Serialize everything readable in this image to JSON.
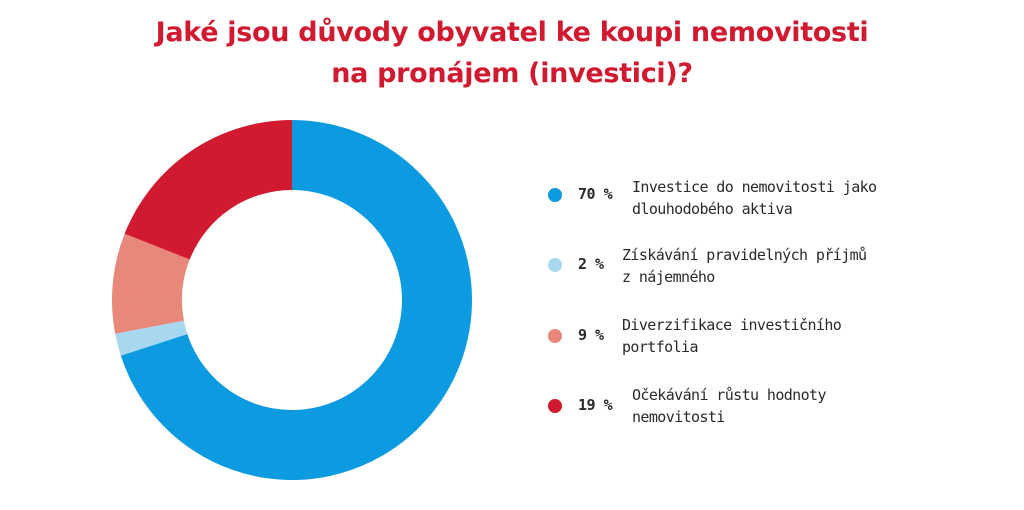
{
  "title_lines": [
    "Jaké jsou důvody obyvatel ke koupi nemovitosti",
    "na pronájem (investici)?"
  ],
  "chart_data": {
    "type": "pie",
    "donut": true,
    "title": "Jaké jsou důvody obyvatel ke koupi nemovitosti na pronájem (investici)?",
    "categories": [
      "Investice do nemovitosti jako dlouhodobého aktiva",
      "Získávání pravidelných příjmů z nájemného",
      "Diverzifikace investičního portfolia",
      "Očekávání růstu hodnoty nemovitosti"
    ],
    "values": [
      70,
      2,
      9,
      19
    ],
    "value_labels": [
      "70 %",
      "2 %",
      "9 %",
      "19 %"
    ],
    "colors": [
      "#0c9be0",
      "#a8d8f0",
      "#e8887a",
      "#d1192f"
    ],
    "legend_placement": "right"
  },
  "legend": [
    {
      "pct": "70 %",
      "line1": "Investice do nemovitosti jako",
      "line2": "dlouhodobého aktiva"
    },
    {
      "pct": "2 %",
      "line1": "Získávání pravidelných příjmů",
      "line2": "z nájemného"
    },
    {
      "pct": "9 %",
      "line1": "Diverzifikace investičního",
      "line2": "portfolia"
    },
    {
      "pct": "19 %",
      "line1": "Očekávání růstu hodnoty",
      "line2": "nemovitosti"
    }
  ]
}
